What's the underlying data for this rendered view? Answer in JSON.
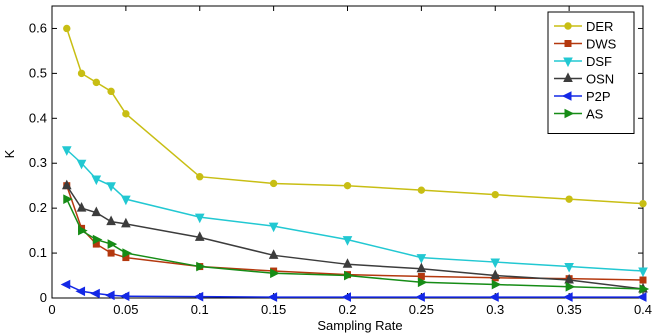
{
  "chart_data": {
    "type": "line",
    "title": "",
    "xlabel": "Sampling Rate",
    "ylabel": "K",
    "xlim": [
      0,
      0.4
    ],
    "ylim": [
      0,
      0.65
    ],
    "x_ticks": [
      0,
      0.05,
      0.1,
      0.15,
      0.2,
      0.25,
      0.3,
      0.35,
      0.4
    ],
    "x_tick_labels": [
      "0",
      "0.05",
      "0.1",
      "0.15",
      "0.2",
      "0.25",
      "0.3",
      "0.35",
      "0.4"
    ],
    "y_ticks": [
      0,
      0.1,
      0.2,
      0.3,
      0.4,
      0.5,
      0.6
    ],
    "y_tick_labels": [
      "0",
      "0.1",
      "0.2",
      "0.3",
      "0.4",
      "0.5",
      "0.6"
    ],
    "grid": false,
    "legend_position": "top-right",
    "x": [
      0.01,
      0.02,
      0.03,
      0.04,
      0.05,
      0.1,
      0.15,
      0.2,
      0.25,
      0.3,
      0.35,
      0.4
    ],
    "series": [
      {
        "name": "DER",
        "color": "#c8be14",
        "marker": "circle",
        "values": [
          0.6,
          0.5,
          0.48,
          0.46,
          0.41,
          0.27,
          0.255,
          0.25,
          0.24,
          0.23,
          0.22,
          0.21
        ]
      },
      {
        "name": "DWS",
        "color": "#b4380e",
        "marker": "square",
        "values": [
          0.25,
          0.155,
          0.12,
          0.1,
          0.09,
          0.07,
          0.06,
          0.052,
          0.048,
          0.045,
          0.043,
          0.04
        ]
      },
      {
        "name": "DSF",
        "color": "#22c8d2",
        "marker": "triangle-down",
        "values": [
          0.33,
          0.3,
          0.265,
          0.25,
          0.22,
          0.18,
          0.16,
          0.13,
          0.09,
          0.08,
          0.07,
          0.06
        ]
      },
      {
        "name": "OSN",
        "color": "#3c3c3c",
        "marker": "triangle-up",
        "values": [
          0.25,
          0.2,
          0.19,
          0.17,
          0.165,
          0.135,
          0.095,
          0.075,
          0.065,
          0.05,
          0.04,
          0.02
        ]
      },
      {
        "name": "P2P",
        "color": "#1428e6",
        "marker": "triangle-left",
        "values": [
          0.03,
          0.015,
          0.01,
          0.006,
          0.004,
          0.003,
          0.002,
          0.002,
          0.002,
          0.002,
          0.002,
          0.002
        ]
      },
      {
        "name": "AS",
        "color": "#168c16",
        "marker": "triangle-right",
        "values": [
          0.22,
          0.15,
          0.13,
          0.12,
          0.1,
          0.07,
          0.055,
          0.05,
          0.035,
          0.03,
          0.025,
          0.02
        ]
      }
    ]
  }
}
